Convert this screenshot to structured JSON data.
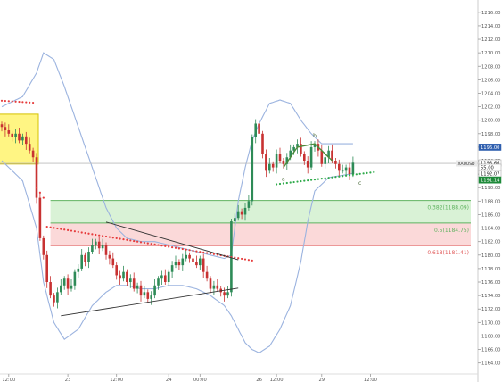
{
  "chart_data": {
    "type": "candlestick",
    "title": "",
    "xlabel": "",
    "ylabel": "",
    "ylim": [
      1162.5,
      1217.3
    ],
    "y_ticks": [
      1164,
      1166,
      1168,
      1170,
      1172,
      1174,
      1176,
      1178,
      1180,
      1182,
      1184,
      1186,
      1188,
      1190,
      1192,
      1194,
      1196,
      1198,
      1200,
      1202,
      1204,
      1206,
      1208,
      1210,
      1212,
      1214,
      1216
    ],
    "y_tick_labels": [
      "1164.00",
      "1166.00",
      "1168.00",
      "1170.00",
      "1172.00",
      "1174.00",
      "1176.00",
      "1178.00",
      "1180.00",
      "1182.00",
      "1184.00",
      "1186.00",
      "1188.00",
      "1190.00",
      "1192.00",
      "1194.00",
      "1196.00",
      "1198.00",
      "1200.00",
      "1202.00",
      "1204.00",
      "1206.00",
      "1208.00",
      "1210.00",
      "1212.00",
      "1214.00",
      "1216.00"
    ],
    "x_ticks": [
      {
        "bar": 2,
        "label": "12:00"
      },
      {
        "bar": 19,
        "label": "23"
      },
      {
        "bar": 33,
        "label": "12:00"
      },
      {
        "bar": 48,
        "label": "24"
      },
      {
        "bar": 57,
        "label": "00:00"
      },
      {
        "bar": 74,
        "label": "26"
      },
      {
        "bar": 79,
        "label": "12:00"
      },
      {
        "bar": 92,
        "label": "29"
      },
      {
        "bar": 106,
        "label": "12:00"
      }
    ],
    "candles": {
      "close": [
        1199,
        1198.5,
        1198,
        1197.5,
        1198,
        1197,
        1197.6,
        1196.5,
        1195.5,
        1194.5,
        1188.5,
        1182.5,
        1180,
        1176,
        1174,
        1173,
        1174.5,
        1175.5,
        1176.5,
        1175,
        1175.5,
        1177.5,
        1178,
        1180,
        1179,
        1180.5,
        1181.5,
        1182,
        1181,
        1181.5,
        1180,
        1179.5,
        1178.5,
        1177,
        1176.5,
        1177.5,
        1176,
        1176.5,
        1175,
        1175.5,
        1174,
        1174.5,
        1173.5,
        1174,
        1175.5,
        1176.5,
        1177,
        1176,
        1177.5,
        1178.5,
        1179,
        1178.5,
        1179.5,
        1180,
        1179.5,
        1179,
        1178.5,
        1179.5,
        1177.5,
        1176.5,
        1175,
        1175.5,
        1175,
        1174.5,
        1174,
        1174.5,
        1185,
        1185.5,
        1186.5,
        1186,
        1187,
        1188,
        1197.5,
        1199.5,
        1198,
        1195,
        1192.5,
        1193.5,
        1193,
        1195,
        1194,
        1193.5,
        1194.5,
        1195.5,
        1196,
        1196.5,
        1195,
        1194,
        1193,
        1196,
        1196.5,
        1195.5,
        1193.5,
        1194.5,
        1195.5,
        1194,
        1193.5,
        1192.5,
        1192.5,
        1193,
        1192,
        1193.7
      ],
      "color_up": "#2e8b57",
      "color_down": "#c83232"
    },
    "bollinger_bands": {
      "color": "#9bb3df",
      "upper_keys": [
        [
          0,
          1202
        ],
        [
          6,
          1203.5
        ],
        [
          10,
          1207
        ],
        [
          12,
          1210
        ],
        [
          15,
          1209
        ],
        [
          18,
          1205
        ],
        [
          22,
          1199
        ],
        [
          26,
          1193
        ],
        [
          30,
          1187
        ],
        [
          33,
          1184
        ],
        [
          36,
          1182.5
        ],
        [
          40,
          1182
        ],
        [
          44,
          1182
        ],
        [
          48,
          1181.5
        ],
        [
          52,
          1181
        ],
        [
          56,
          1180.5
        ],
        [
          60,
          1180
        ],
        [
          64,
          1179.5
        ],
        [
          66,
          1180
        ],
        [
          68,
          1188
        ],
        [
          70,
          1193
        ],
        [
          72,
          1197
        ],
        [
          74,
          1199.5
        ],
        [
          77,
          1202.5
        ],
        [
          80,
          1203
        ],
        [
          83,
          1202.5
        ],
        [
          86,
          1200
        ],
        [
          89,
          1198
        ],
        [
          92,
          1196.5
        ],
        [
          96,
          1196.5
        ],
        [
          100,
          1196.5
        ],
        [
          104,
          1196.5
        ],
        [
          107,
          1196.5
        ]
      ],
      "lower_keys": [
        [
          0,
          1194
        ],
        [
          6,
          1191
        ],
        [
          10,
          1184
        ],
        [
          12,
          1176
        ],
        [
          15,
          1170
        ],
        [
          18,
          1167.5
        ],
        [
          22,
          1169
        ],
        [
          26,
          1172.5
        ],
        [
          30,
          1174.5
        ],
        [
          33,
          1175.5
        ],
        [
          36,
          1175.5
        ],
        [
          40,
          1175
        ],
        [
          44,
          1175
        ],
        [
          48,
          1175.5
        ],
        [
          52,
          1175.5
        ],
        [
          56,
          1175
        ],
        [
          60,
          1174
        ],
        [
          64,
          1172.5
        ],
        [
          66,
          1171
        ],
        [
          68,
          1169
        ],
        [
          70,
          1167
        ],
        [
          72,
          1166
        ],
        [
          74,
          1165.5
        ],
        [
          77,
          1166.5
        ],
        [
          80,
          1169
        ],
        [
          83,
          1172.5
        ],
        [
          86,
          1179
        ],
        [
          88,
          1185
        ],
        [
          90,
          1189.5
        ],
        [
          94,
          1191.5
        ],
        [
          100,
          1192
        ],
        [
          104,
          1192.5
        ],
        [
          107,
          1192.5
        ]
      ]
    },
    "parabolic_sar": {
      "color_red": "#e63c3c",
      "color_green": "#2eaa4a",
      "red_ranges": [
        [
          0,
          9,
          1202.9,
          1202.6
        ],
        [
          10,
          12,
          1190,
          1188.5
        ],
        [
          13,
          72,
          1184.2,
          1179.2
        ]
      ],
      "green_range": [
        79,
        107,
        1190.5,
        1192.3
      ]
    },
    "fibonacci": {
      "levels": [
        {
          "label": "0.382(1188.09)",
          "value": 1188.09,
          "color": "#5fb35f"
        },
        {
          "label": "0.5(1184.75)",
          "value": 1184.75,
          "color": "#5fb35f"
        },
        {
          "label": "0.618(1181.41)",
          "value": 1181.41,
          "color": "#e05a5a"
        }
      ],
      "zone_green": [
        1184.75,
        1188.09
      ],
      "zone_red": [
        1181.41,
        1184.75
      ],
      "start_bar": 14
    },
    "highlight_box": {
      "bars": [
        0,
        10
      ],
      "y_range": [
        1193.5,
        1200.9
      ],
      "fill": "#fff15a",
      "stroke": "#d6c200"
    },
    "triangle_lines": [
      {
        "from": [
          17,
          1171
        ],
        "to": [
          68,
          1175.1
        ]
      },
      {
        "from": [
          30,
          1184.9
        ],
        "to": [
          68,
          1179.3
        ]
      }
    ],
    "wave_pattern": {
      "points": [
        [
          81,
          1193
        ],
        [
          85,
          1196
        ],
        [
          90,
          1196.5
        ],
        [
          95,
          1194
        ]
      ],
      "color": "#4e8a3a",
      "labels": [
        {
          "text": "a",
          "bar": 81,
          "value": 1191.3
        },
        {
          "text": "b",
          "bar": 90,
          "value": 1197.7
        },
        {
          "text": "c",
          "bar": 103,
          "value": 1190.7
        }
      ]
    },
    "price_lines": [
      {
        "value": 1193.6,
        "label": "XAUUSD",
        "bg": "#e9e9e9",
        "color": "#333333"
      }
    ],
    "price_tags": [
      {
        "value": 1196.0,
        "label": "1196.00",
        "bg": "#2e5eae",
        "color": "#ffffff"
      },
      {
        "value": 1193.66,
        "label": "1193.66",
        "bg": "#ffffff",
        "color": "#222222"
      },
      {
        "value": 1193.0,
        "label": "55.00",
        "bg": "#ffffff",
        "color": "#222222"
      },
      {
        "value": 1192.07,
        "label": "1192.07",
        "bg": "#ffffff",
        "color": "#222222"
      },
      {
        "value": 1191.14,
        "label": "1191.14",
        "bg": "#1f8a3a",
        "color": "#ffffff"
      }
    ]
  }
}
